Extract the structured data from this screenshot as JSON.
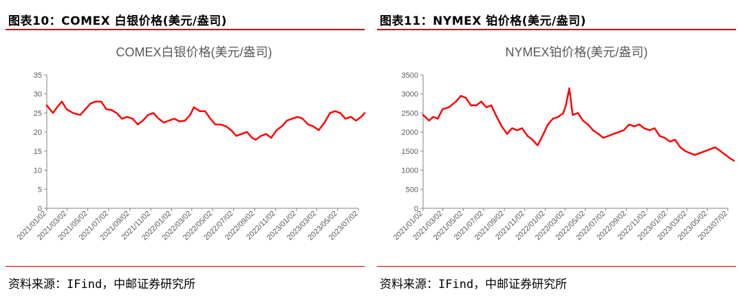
{
  "panels": [
    {
      "figure_title": "图表10：COMEX 白银价格(美元/盎司)",
      "source": "资料来源：IFind，中邮证券研究所"
    },
    {
      "figure_title": "图表11：NYMEX 铂价格(美元/盎司)",
      "source": "资料来源：IFind，中邮证券研究所"
    }
  ],
  "chart_data": [
    {
      "type": "line",
      "title": "COMEX白银价格(美元/盎司)",
      "xlabel": "",
      "ylabel": "",
      "ylim": [
        0,
        35
      ],
      "yticks": [
        0,
        5,
        10,
        15,
        20,
        25,
        30,
        35
      ],
      "x_tick_labels": [
        "2021/01/02",
        "2021/03/02",
        "2021/05/02",
        "2021/07/02",
        "2021/09/02",
        "2021/11/02",
        "2022/01/02",
        "2022/03/02",
        "2022/05/02",
        "2022/07/02",
        "2022/09/02",
        "2022/11/02",
        "2023/01/02",
        "2023/03/02",
        "2023/05/02",
        "2023/07/02"
      ],
      "line_color": "#ff0000",
      "x": [
        "2021/01/02",
        "2021/01/20",
        "2021/02/01",
        "2021/02/15",
        "2021/03/01",
        "2021/03/20",
        "2021/04/10",
        "2021/04/25",
        "2021/05/10",
        "2021/05/25",
        "2021/06/10",
        "2021/06/25",
        "2021/07/10",
        "2021/07/25",
        "2021/08/10",
        "2021/08/25",
        "2021/09/10",
        "2021/09/25",
        "2021/10/10",
        "2021/10/25",
        "2021/11/10",
        "2021/11/25",
        "2021/12/10",
        "2021/12/25",
        "2022/01/10",
        "2022/01/25",
        "2022/02/10",
        "2022/02/25",
        "2022/03/08",
        "2022/03/25",
        "2022/04/10",
        "2022/04/25",
        "2022/05/10",
        "2022/05/25",
        "2022/06/10",
        "2022/06/25",
        "2022/07/10",
        "2022/07/25",
        "2022/08/10",
        "2022/08/25",
        "2022/09/05",
        "2022/09/20",
        "2022/10/05",
        "2022/10/20",
        "2022/11/05",
        "2022/11/20",
        "2022/12/05",
        "2022/12/20",
        "2023/01/05",
        "2023/01/20",
        "2023/02/05",
        "2023/02/20",
        "2023/03/08",
        "2023/03/25",
        "2023/04/10",
        "2023/04/25",
        "2023/05/10",
        "2023/05/25",
        "2023/06/10",
        "2023/06/25",
        "2023/07/10",
        "2023/07/20"
      ],
      "values": [
        27.0,
        25.0,
        26.5,
        28.0,
        26.0,
        25.0,
        24.5,
        26.0,
        27.5,
        28.0,
        28.0,
        26.0,
        25.8,
        25.0,
        23.5,
        24.0,
        23.5,
        22.0,
        23.0,
        24.5,
        25.0,
        23.5,
        22.5,
        23.0,
        23.5,
        22.8,
        23.0,
        24.5,
        26.5,
        25.5,
        25.5,
        23.5,
        22.0,
        22.0,
        21.5,
        20.5,
        19.0,
        19.5,
        20.0,
        18.5,
        18.0,
        19.0,
        19.5,
        18.5,
        20.5,
        21.5,
        23.0,
        23.5,
        24.0,
        23.5,
        22.0,
        21.5,
        20.5,
        22.5,
        25.0,
        25.5,
        25.0,
        23.5,
        24.0,
        23.0,
        24.0,
        25.0
      ]
    },
    {
      "type": "line",
      "title": "NYMEX铂价格(美元/盎司)",
      "xlabel": "",
      "ylabel": "",
      "ylim": [
        0,
        3500
      ],
      "yticks": [
        0,
        500,
        1000,
        1500,
        2000,
        2500,
        3000,
        3500
      ],
      "x_tick_labels": [
        "2021/01/02",
        "2021/03/02",
        "2021/05/02",
        "2021/07/02",
        "2021/09/02",
        "2021/11/02",
        "2022/01/02",
        "2022/03/02",
        "2022/05/02",
        "2022/07/02",
        "2022/09/02",
        "2022/11/02",
        "2023/01/02",
        "2023/03/02",
        "2023/05/02",
        "2023/07/02"
      ],
      "line_color": "#ff0000",
      "x": [
        "2021/01/02",
        "2021/01/20",
        "2021/02/01",
        "2021/02/15",
        "2021/03/01",
        "2021/03/20",
        "2021/04/10",
        "2021/04/25",
        "2021/05/10",
        "2021/05/25",
        "2021/06/10",
        "2021/06/25",
        "2021/07/10",
        "2021/07/25",
        "2021/08/10",
        "2021/08/25",
        "2021/09/10",
        "2021/09/25",
        "2021/10/10",
        "2021/10/25",
        "2021/11/10",
        "2021/11/25",
        "2021/12/10",
        "2021/12/25",
        "2022/01/10",
        "2022/01/25",
        "2022/02/10",
        "2022/02/25",
        "2022/03/05",
        "2022/03/15",
        "2022/03/25",
        "2022/04/10",
        "2022/04/25",
        "2022/05/10",
        "2022/05/25",
        "2022/06/10",
        "2022/06/25",
        "2022/07/10",
        "2022/07/25",
        "2022/08/10",
        "2022/08/25",
        "2022/09/10",
        "2022/09/25",
        "2022/10/10",
        "2022/10/25",
        "2022/11/10",
        "2022/11/25",
        "2022/12/10",
        "2022/12/25",
        "2023/01/10",
        "2023/01/25",
        "2023/02/10",
        "2023/02/25",
        "2023/03/10",
        "2023/03/25",
        "2023/04/10",
        "2023/04/25",
        "2023/05/10",
        "2023/05/25",
        "2023/06/10",
        "2023/06/25",
        "2023/07/10",
        "2023/07/20"
      ],
      "values": [
        2450,
        2300,
        2400,
        2350,
        2600,
        2650,
        2800,
        2950,
        2900,
        2700,
        2700,
        2800,
        2650,
        2700,
        2400,
        2150,
        1950,
        2100,
        2050,
        2100,
        1900,
        1800,
        1650,
        1900,
        2200,
        2350,
        2400,
        2500,
        2700,
        3150,
        2450,
        2500,
        2300,
        2200,
        2050,
        1950,
        1850,
        1900,
        1950,
        2000,
        2050,
        2200,
        2150,
        2200,
        2100,
        2050,
        2100,
        1900,
        1850,
        1750,
        1800,
        1600,
        1500,
        1450,
        1400,
        1450,
        1500,
        1550,
        1600,
        1500,
        1400,
        1300,
        1250
      ]
    }
  ]
}
